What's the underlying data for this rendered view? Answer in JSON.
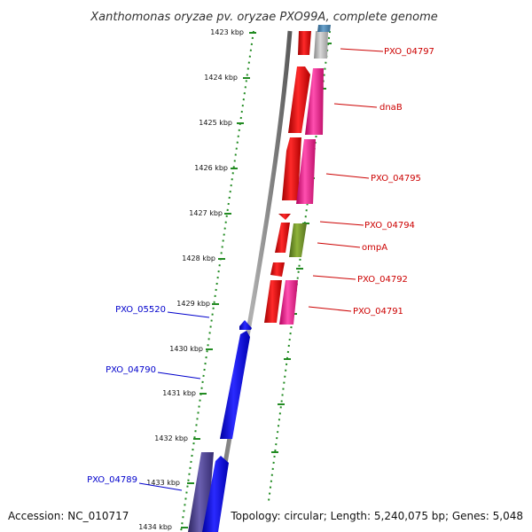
{
  "title": "Xanthomonas oryzae pv. oryzae PXO99A, complete genome",
  "footer": {
    "accession": "Accession: NC_010717",
    "summary": "Topology: circular; Length: 5,240,075 bp; Genes: 5,048"
  },
  "colors": {
    "backbone": "#808080",
    "tick": "#228b22",
    "forward_label": "#cc0000",
    "reverse_label": "#0000cc",
    "red_gene": "#ff0000",
    "pink_gene": "#ff1493",
    "gray_gene": "#b0b0b0",
    "steel_blue_gene": "#4682b4",
    "olive_gene": "#6b8e23",
    "blue_gene": "#0000ee",
    "dark_slate_gene": "#483d8b"
  },
  "ticks": [
    "1423 kbp",
    "1424 kbp",
    "1425 kbp",
    "1426 kbp",
    "1427 kbp",
    "1428 kbp",
    "1429 kbp",
    "1430 kbp",
    "1431 kbp",
    "1432 kbp",
    "1433 kbp",
    "1434 kbp"
  ],
  "forward_labels": [
    "PXO_04797",
    "dnaB",
    "PXO_04795",
    "PXO_04794",
    "ompA",
    "PXO_04792",
    "PXO_04791"
  ],
  "reverse_labels": [
    "PXO_05520",
    "PXO_04790",
    "PXO_04789"
  ]
}
